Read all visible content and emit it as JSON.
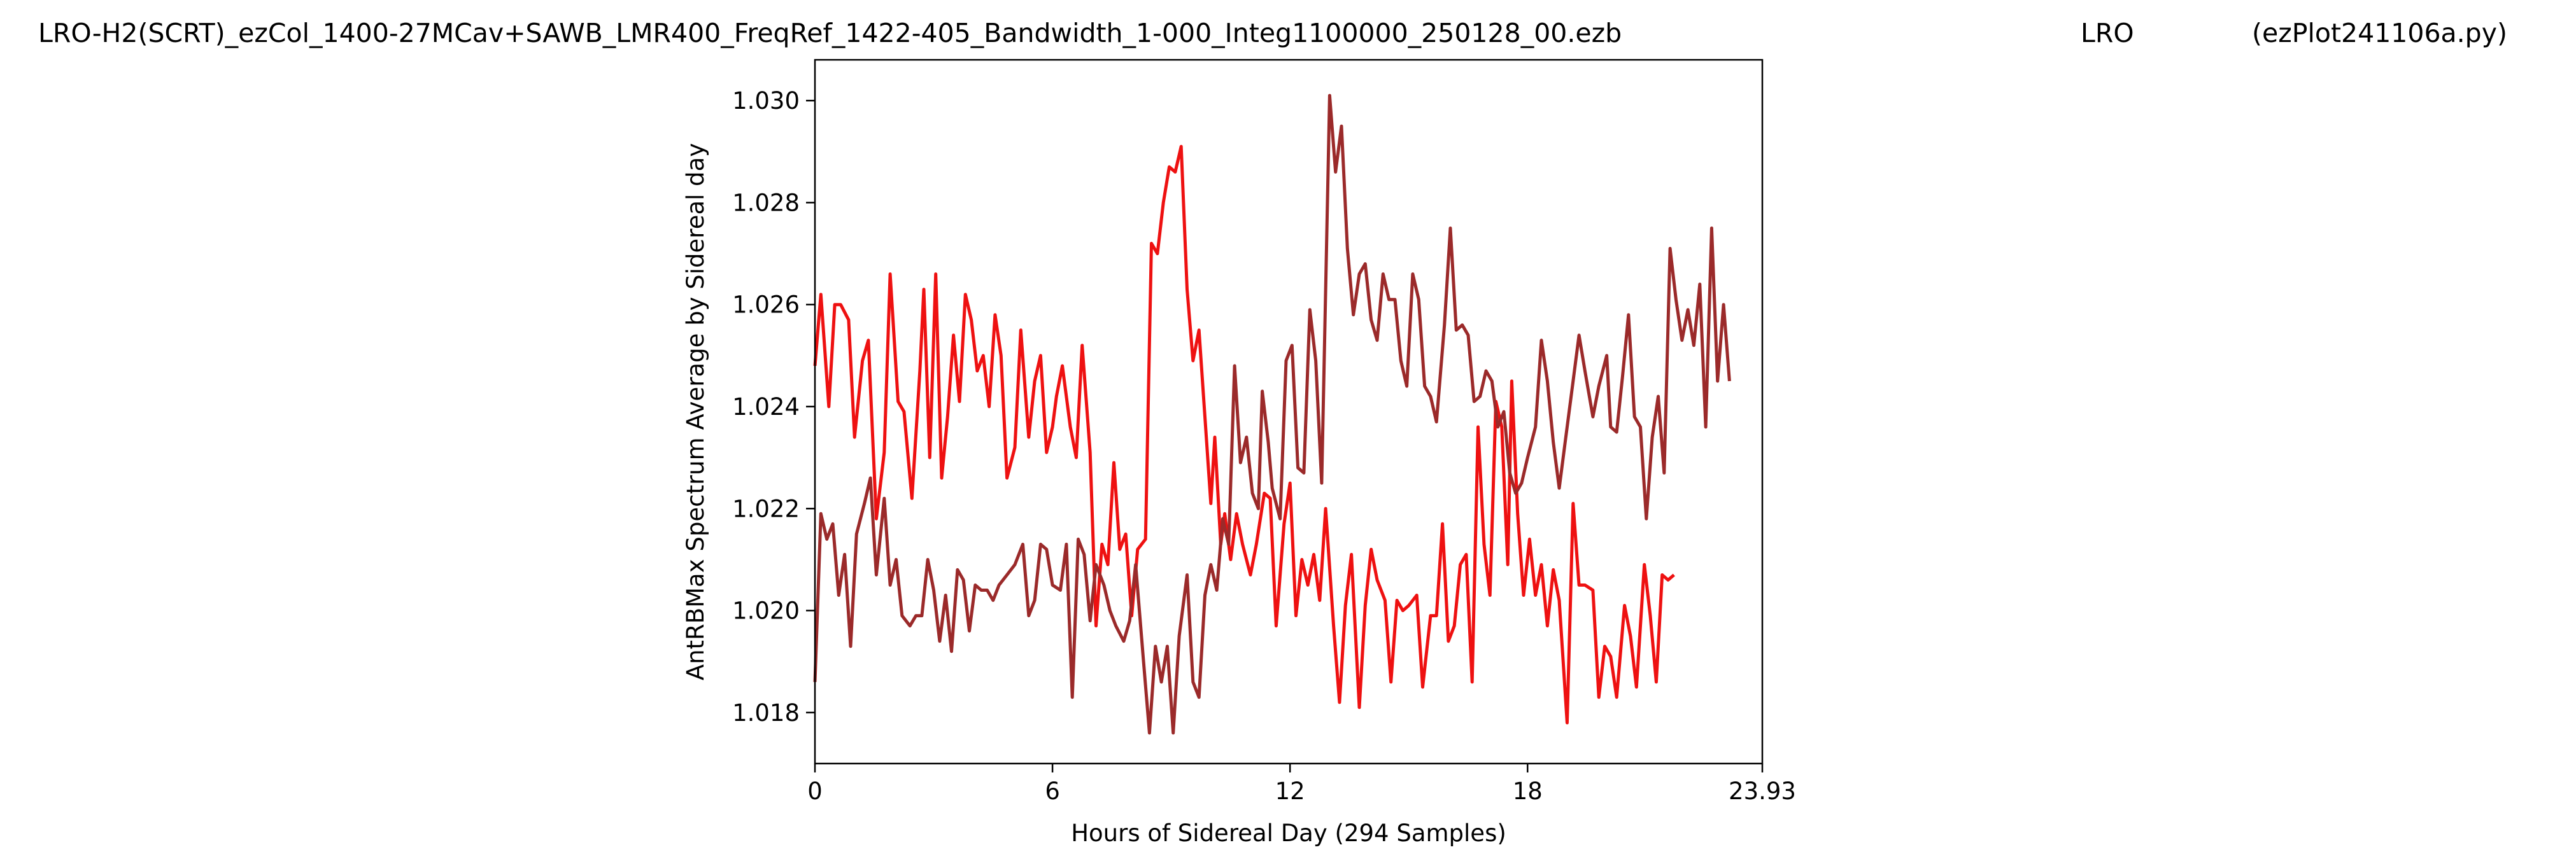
{
  "header": {
    "filename": "LRO-H2(SCRT)_ezCol_1400-27MCav+SAWB_LMR400_FreqRef_1422-405_Bandwidth_1-000_Integ1100000_250128_00.ezb",
    "site": "LRO",
    "script": "(ezPlot241106a.py)"
  },
  "chart_data": {
    "type": "line",
    "xlabel": "Hours of Sidereal Day  (294 Samples)",
    "ylabel": "AntRBMax Spectrum Average by Sidereal day",
    "xlim": [
      0,
      23.93
    ],
    "ylim": [
      1.017,
      1.0308
    ],
    "xticks": [
      0,
      6,
      12,
      18,
      23.93
    ],
    "xtick_labels": [
      "0",
      "6",
      "12",
      "18",
      "23.93"
    ],
    "yticks": [
      1.018,
      1.02,
      1.022,
      1.024,
      1.026,
      1.028,
      1.03
    ],
    "ytick_labels": [
      "1.018",
      "1.020",
      "1.022",
      "1.024",
      "1.026",
      "1.028",
      "1.030"
    ],
    "grid": false,
    "series": [
      {
        "color": "#ee1111",
        "points": [
          [
            0.0,
            1.0248
          ],
          [
            0.15,
            1.0262
          ],
          [
            0.35,
            1.024
          ],
          [
            0.5,
            1.026
          ],
          [
            0.65,
            1.026
          ],
          [
            0.85,
            1.0257
          ],
          [
            1.0,
            1.0234
          ],
          [
            1.2,
            1.0249
          ],
          [
            1.35,
            1.0253
          ],
          [
            1.55,
            1.0218
          ],
          [
            1.75,
            1.0231
          ],
          [
            1.9,
            1.0266
          ],
          [
            2.1,
            1.0241
          ],
          [
            2.25,
            1.0239
          ],
          [
            2.45,
            1.0222
          ],
          [
            2.65,
            1.0247
          ],
          [
            2.75,
            1.0263
          ],
          [
            2.9,
            1.023
          ],
          [
            3.05,
            1.0266
          ],
          [
            3.2,
            1.0226
          ],
          [
            3.35,
            1.0238
          ],
          [
            3.5,
            1.0254
          ],
          [
            3.65,
            1.0241
          ],
          [
            3.8,
            1.0262
          ],
          [
            3.95,
            1.0257
          ],
          [
            4.1,
            1.0247
          ],
          [
            4.25,
            1.025
          ],
          [
            4.4,
            1.024
          ],
          [
            4.55,
            1.0258
          ],
          [
            4.7,
            1.025
          ],
          [
            4.85,
            1.0226
          ],
          [
            5.05,
            1.0232
          ],
          [
            5.2,
            1.0255
          ],
          [
            5.4,
            1.0234
          ],
          [
            5.55,
            1.0245
          ],
          [
            5.7,
            1.025
          ],
          [
            5.85,
            1.0231
          ],
          [
            6.0,
            1.0236
          ],
          [
            6.1,
            1.0242
          ],
          [
            6.25,
            1.0248
          ],
          [
            6.45,
            1.0236
          ],
          [
            6.6,
            1.023
          ],
          [
            6.75,
            1.0252
          ],
          [
            6.95,
            1.0231
          ],
          [
            7.1,
            1.0197
          ],
          [
            7.25,
            1.0213
          ],
          [
            7.4,
            1.0209
          ],
          [
            7.55,
            1.0229
          ],
          [
            7.7,
            1.0212
          ],
          [
            7.85,
            1.0215
          ],
          [
            8.0,
            1.0199
          ],
          [
            8.15,
            1.0212
          ],
          [
            8.35,
            1.0214
          ],
          [
            8.5,
            1.0272
          ],
          [
            8.65,
            1.027
          ],
          [
            8.8,
            1.028
          ],
          [
            8.95,
            1.0287
          ],
          [
            9.1,
            1.0286
          ],
          [
            9.25,
            1.0291
          ],
          [
            9.4,
            1.0263
          ],
          [
            9.55,
            1.0249
          ],
          [
            9.7,
            1.0255
          ],
          [
            9.85,
            1.0238
          ],
          [
            10.0,
            1.0221
          ],
          [
            10.1,
            1.0234
          ],
          [
            10.25,
            1.0213
          ],
          [
            10.35,
            1.0219
          ],
          [
            10.5,
            1.021
          ],
          [
            10.65,
            1.0219
          ],
          [
            10.8,
            1.0213
          ],
          [
            11.0,
            1.0207
          ],
          [
            11.15,
            1.0213
          ],
          [
            11.35,
            1.0223
          ],
          [
            11.5,
            1.0222
          ],
          [
            11.65,
            1.0197
          ],
          [
            11.85,
            1.0217
          ],
          [
            12.0,
            1.0225
          ],
          [
            12.15,
            1.0199
          ],
          [
            12.3,
            1.021
          ],
          [
            12.45,
            1.0205
          ],
          [
            12.6,
            1.0211
          ],
          [
            12.75,
            1.0202
          ],
          [
            12.9,
            1.022
          ],
          [
            13.1,
            1.0197
          ],
          [
            13.25,
            1.0182
          ],
          [
            13.4,
            1.0201
          ],
          [
            13.55,
            1.0211
          ],
          [
            13.75,
            1.0181
          ],
          [
            13.9,
            1.0201
          ],
          [
            14.05,
            1.0212
          ],
          [
            14.2,
            1.0206
          ],
          [
            14.4,
            1.0202
          ],
          [
            14.55,
            1.0186
          ],
          [
            14.7,
            1.0202
          ],
          [
            14.85,
            1.02
          ],
          [
            15.0,
            1.0201
          ],
          [
            15.2,
            1.0203
          ],
          [
            15.35,
            1.0185
          ],
          [
            15.55,
            1.0199
          ],
          [
            15.7,
            1.0199
          ],
          [
            15.85,
            1.0217
          ],
          [
            16.0,
            1.0194
          ],
          [
            16.15,
            1.0197
          ],
          [
            16.3,
            1.0209
          ],
          [
            16.45,
            1.0211
          ],
          [
            16.6,
            1.0186
          ],
          [
            16.75,
            1.0236
          ],
          [
            16.9,
            1.0213
          ],
          [
            17.05,
            1.0203
          ],
          [
            17.2,
            1.0241
          ],
          [
            17.35,
            1.0236
          ],
          [
            17.5,
            1.0209
          ],
          [
            17.6,
            1.0245
          ],
          [
            17.75,
            1.0219
          ],
          [
            17.9,
            1.0203
          ],
          [
            18.05,
            1.0214
          ],
          [
            18.2,
            1.0203
          ],
          [
            18.35,
            1.0209
          ],
          [
            18.5,
            1.0197
          ],
          [
            18.65,
            1.0208
          ],
          [
            18.8,
            1.0202
          ],
          [
            19.0,
            1.0178
          ],
          [
            19.15,
            1.0221
          ],
          [
            19.3,
            1.0205
          ],
          [
            19.45,
            1.0205
          ],
          [
            19.65,
            1.0204
          ],
          [
            19.8,
            1.0183
          ],
          [
            19.95,
            1.0193
          ],
          [
            20.1,
            1.0191
          ],
          [
            20.25,
            1.0183
          ],
          [
            20.45,
            1.0201
          ],
          [
            20.6,
            1.0195
          ],
          [
            20.75,
            1.0185
          ],
          [
            20.95,
            1.0209
          ],
          [
            21.1,
            1.0199
          ],
          [
            21.25,
            1.0186
          ],
          [
            21.4,
            1.0207
          ],
          [
            21.55,
            1.0206
          ],
          [
            21.7,
            1.0207
          ]
        ]
      },
      {
        "color": "#9b2a2a",
        "points": [
          [
            0.0,
            1.0186
          ],
          [
            0.15,
            1.0219
          ],
          [
            0.3,
            1.0214
          ],
          [
            0.45,
            1.0217
          ],
          [
            0.6,
            1.0203
          ],
          [
            0.75,
            1.0211
          ],
          [
            0.9,
            1.0193
          ],
          [
            1.05,
            1.0215
          ],
          [
            1.25,
            1.0221
          ],
          [
            1.4,
            1.0226
          ],
          [
            1.55,
            1.0207
          ],
          [
            1.75,
            1.0222
          ],
          [
            1.9,
            1.0205
          ],
          [
            2.05,
            1.021
          ],
          [
            2.2,
            1.0199
          ],
          [
            2.4,
            1.0197
          ],
          [
            2.55,
            1.0199
          ],
          [
            2.7,
            1.0199
          ],
          [
            2.85,
            1.021
          ],
          [
            3.0,
            1.0204
          ],
          [
            3.15,
            1.0194
          ],
          [
            3.3,
            1.0203
          ],
          [
            3.45,
            1.0192
          ],
          [
            3.6,
            1.0208
          ],
          [
            3.75,
            1.0206
          ],
          [
            3.9,
            1.0196
          ],
          [
            4.05,
            1.0205
          ],
          [
            4.2,
            1.0204
          ],
          [
            4.35,
            1.0204
          ],
          [
            4.5,
            1.0202
          ],
          [
            4.65,
            1.0205
          ],
          [
            4.85,
            1.0207
          ],
          [
            5.05,
            1.0209
          ],
          [
            5.25,
            1.0213
          ],
          [
            5.4,
            1.0199
          ],
          [
            5.55,
            1.0202
          ],
          [
            5.7,
            1.0213
          ],
          [
            5.85,
            1.0212
          ],
          [
            6.0,
            1.0205
          ],
          [
            6.2,
            1.0204
          ],
          [
            6.35,
            1.0213
          ],
          [
            6.5,
            1.0183
          ],
          [
            6.65,
            1.0214
          ],
          [
            6.8,
            1.0211
          ],
          [
            6.95,
            1.0198
          ],
          [
            7.1,
            1.0209
          ],
          [
            7.3,
            1.0205
          ],
          [
            7.45,
            1.02
          ],
          [
            7.6,
            1.0197
          ],
          [
            7.8,
            1.0194
          ],
          [
            7.95,
            1.0198
          ],
          [
            8.1,
            1.0209
          ],
          [
            8.3,
            1.019
          ],
          [
            8.45,
            1.0176
          ],
          [
            8.6,
            1.0193
          ],
          [
            8.75,
            1.0186
          ],
          [
            8.9,
            1.0193
          ],
          [
            9.05,
            1.0176
          ],
          [
            9.2,
            1.0195
          ],
          [
            9.4,
            1.0207
          ],
          [
            9.55,
            1.0186
          ],
          [
            9.7,
            1.0183
          ],
          [
            9.85,
            1.0203
          ],
          [
            10.0,
            1.0209
          ],
          [
            10.15,
            1.0204
          ],
          [
            10.3,
            1.0218
          ],
          [
            10.45,
            1.0213
          ],
          [
            10.6,
            1.0248
          ],
          [
            10.75,
            1.0229
          ],
          [
            10.9,
            1.0234
          ],
          [
            11.05,
            1.0223
          ],
          [
            11.2,
            1.022
          ],
          [
            11.3,
            1.0243
          ],
          [
            11.45,
            1.0233
          ],
          [
            11.55,
            1.0224
          ],
          [
            11.75,
            1.0218
          ],
          [
            11.9,
            1.0249
          ],
          [
            12.05,
            1.0252
          ],
          [
            12.2,
            1.0228
          ],
          [
            12.35,
            1.0227
          ],
          [
            12.5,
            1.0259
          ],
          [
            12.65,
            1.0249
          ],
          [
            12.8,
            1.0225
          ],
          [
            13.0,
            1.0301
          ],
          [
            13.15,
            1.0286
          ],
          [
            13.3,
            1.0295
          ],
          [
            13.45,
            1.0271
          ],
          [
            13.6,
            1.0258
          ],
          [
            13.75,
            1.0266
          ],
          [
            13.9,
            1.0268
          ],
          [
            14.05,
            1.0257
          ],
          [
            14.2,
            1.0253
          ],
          [
            14.35,
            1.0266
          ],
          [
            14.5,
            1.0261
          ],
          [
            14.65,
            1.0261
          ],
          [
            14.8,
            1.0249
          ],
          [
            14.95,
            1.0244
          ],
          [
            15.1,
            1.0266
          ],
          [
            15.25,
            1.0261
          ],
          [
            15.4,
            1.0244
          ],
          [
            15.55,
            1.0242
          ],
          [
            15.7,
            1.0237
          ],
          [
            15.9,
            1.0256
          ],
          [
            16.05,
            1.0275
          ],
          [
            16.2,
            1.0255
          ],
          [
            16.35,
            1.0256
          ],
          [
            16.5,
            1.0254
          ],
          [
            16.65,
            1.0241
          ],
          [
            16.8,
            1.0242
          ],
          [
            16.95,
            1.0247
          ],
          [
            17.1,
            1.0245
          ],
          [
            17.25,
            1.0236
          ],
          [
            17.4,
            1.0239
          ],
          [
            17.55,
            1.0227
          ],
          [
            17.7,
            1.0223
          ],
          [
            17.85,
            1.0225
          ],
          [
            18.0,
            1.023
          ],
          [
            18.2,
            1.0236
          ],
          [
            18.35,
            1.0253
          ],
          [
            18.5,
            1.0245
          ],
          [
            18.65,
            1.0233
          ],
          [
            18.8,
            1.0224
          ],
          [
            18.95,
            1.0233
          ],
          [
            19.15,
            1.0245
          ],
          [
            19.3,
            1.0254
          ],
          [
            19.45,
            1.0247
          ],
          [
            19.65,
            1.0238
          ],
          [
            19.8,
            1.0244
          ],
          [
            20.0,
            1.025
          ],
          [
            20.1,
            1.0236
          ],
          [
            20.25,
            1.0235
          ],
          [
            20.4,
            1.0246
          ],
          [
            20.55,
            1.0258
          ],
          [
            20.7,
            1.0238
          ],
          [
            20.85,
            1.0236
          ],
          [
            21.0,
            1.0218
          ],
          [
            21.15,
            1.0234
          ],
          [
            21.3,
            1.0242
          ],
          [
            21.45,
            1.0227
          ],
          [
            21.6,
            1.0271
          ],
          [
            21.75,
            1.0261
          ],
          [
            21.9,
            1.0253
          ],
          [
            22.05,
            1.0259
          ],
          [
            22.2,
            1.0252
          ],
          [
            22.35,
            1.0264
          ],
          [
            22.5,
            1.0236
          ],
          [
            22.65,
            1.0275
          ],
          [
            22.8,
            1.0245
          ],
          [
            22.95,
            1.026
          ],
          [
            23.1,
            1.0245
          ]
        ]
      }
    ]
  }
}
